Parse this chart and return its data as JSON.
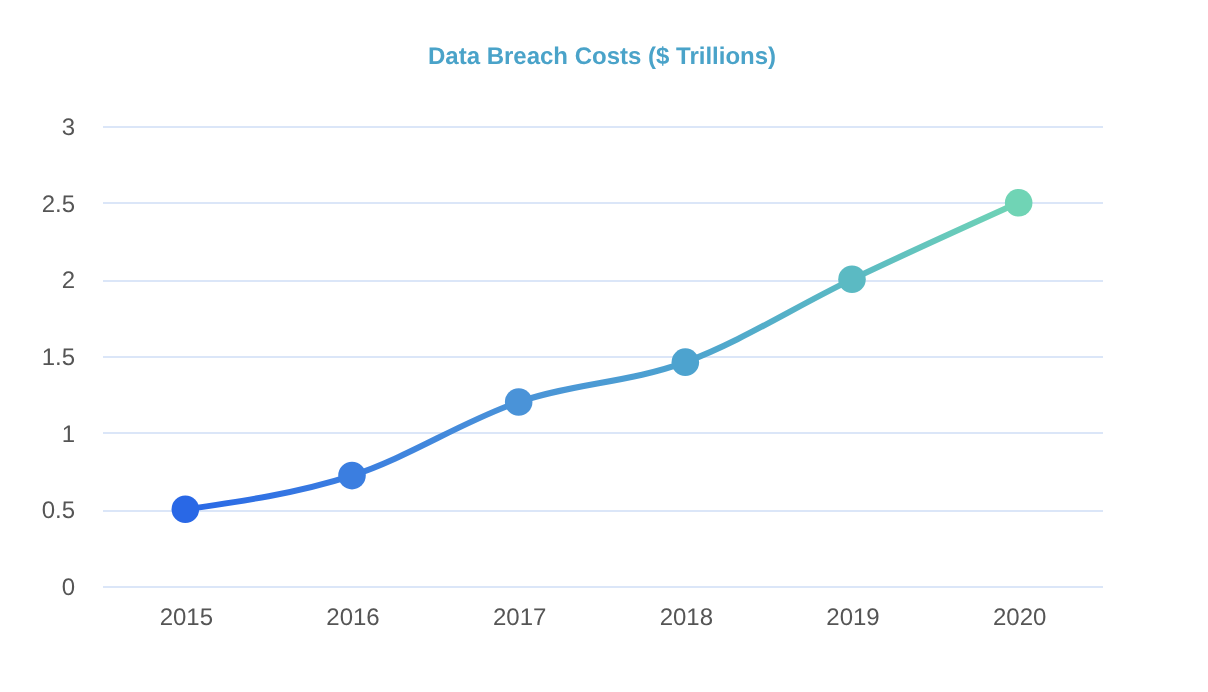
{
  "chart_data": {
    "type": "line",
    "title": "Data Breach Costs ($ Trillions)",
    "categories": [
      "2015",
      "2016",
      "2017",
      "2018",
      "2019",
      "2020"
    ],
    "values": [
      0.5,
      0.72,
      1.2,
      1.46,
      2.0,
      2.5
    ],
    "colors": [
      "#2968e6",
      "#3b7ee0",
      "#4a93d8",
      "#4da3cf",
      "#5bbac3",
      "#70d4b5"
    ],
    "ylim": [
      0,
      3
    ],
    "yticks": [
      0,
      0.5,
      1,
      1.5,
      2,
      2.5,
      3
    ],
    "grid": "y",
    "marker": "circle",
    "line_style": "solid"
  }
}
